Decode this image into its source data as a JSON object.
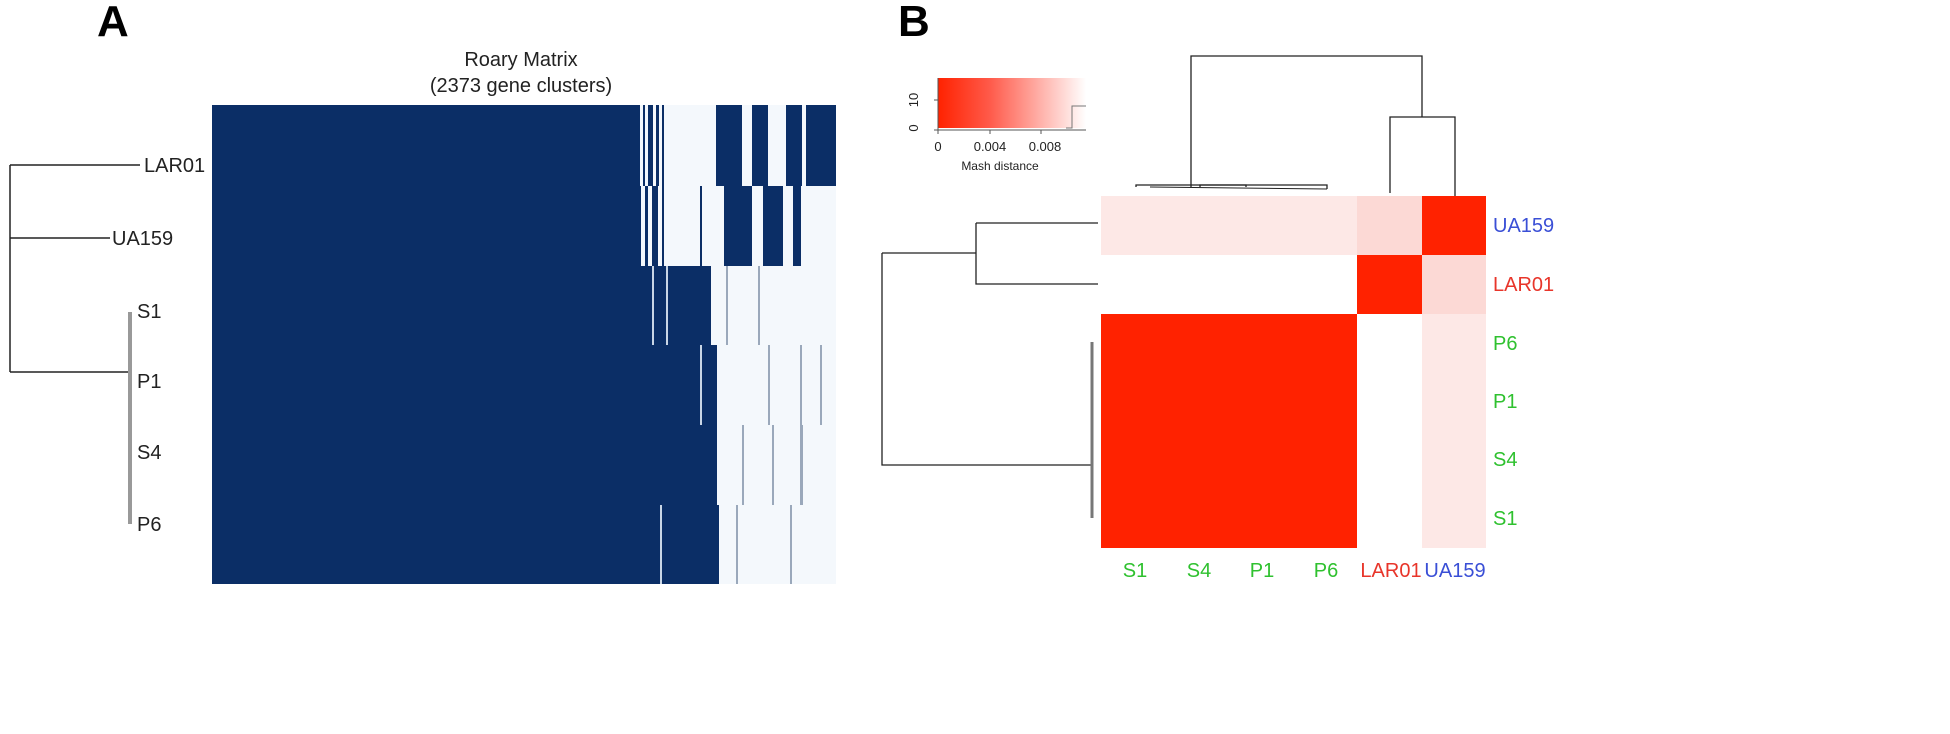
{
  "panel_a": {
    "letter": "A",
    "title_line1": "Roary Matrix",
    "title_line2": "(2373 gene clusters)",
    "tree_labels": [
      "LAR01",
      "UA159",
      "S1",
      "P1",
      "S4",
      "P6"
    ]
  },
  "panel_b": {
    "letter": "B",
    "legend": {
      "y_ticks": [
        "10",
        "0"
      ],
      "x_ticks": [
        "0",
        "0.004",
        "0.008"
      ],
      "title": "Mash distance"
    },
    "row_labels": [
      {
        "text": "UA159",
        "color": "#3a4fd6"
      },
      {
        "text": "LAR01",
        "color": "#e8352a"
      },
      {
        "text": "P6",
        "color": "#2fc12f"
      },
      {
        "text": "P1",
        "color": "#2fc12f"
      },
      {
        "text": "S4",
        "color": "#2fc12f"
      },
      {
        "text": "S1",
        "color": "#2fc12f"
      }
    ],
    "col_labels": [
      {
        "text": "S1",
        "color": "#2fc12f"
      },
      {
        "text": "S4",
        "color": "#2fc12f"
      },
      {
        "text": "P1",
        "color": "#2fc12f"
      },
      {
        "text": "P6",
        "color": "#2fc12f"
      },
      {
        "text": "LAR01",
        "color": "#e8352a"
      },
      {
        "text": "UA159",
        "color": "#3a4fd6"
      }
    ]
  },
  "colors": {
    "presence": "#0b2e66",
    "absence": "#f4f8fc",
    "heat_high": "#ff2200",
    "heat_low": "#fde8e6",
    "line": "#222222"
  }
}
